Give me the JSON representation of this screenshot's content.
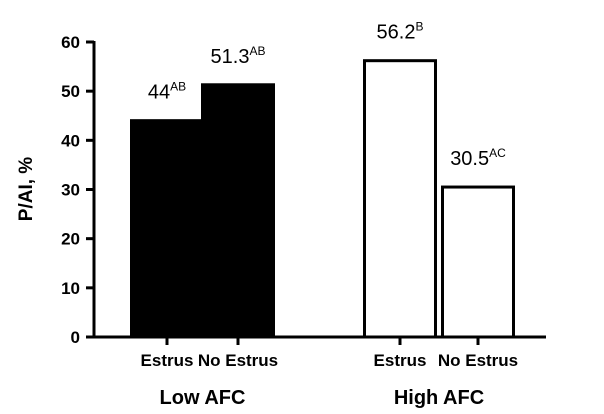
{
  "chart_data": {
    "type": "bar",
    "ylabel": "P/AI, %",
    "ylim": [
      0,
      60
    ],
    "yticks": [
      "0",
      "10",
      "20",
      "30",
      "40",
      "50",
      "60"
    ],
    "categories": [
      "Estrus",
      "No Estrus",
      "Estrus",
      "No Estrus"
    ],
    "groups": [
      {
        "label": "Low AFC",
        "categories": [
          0,
          1
        ]
      },
      {
        "label": "High AFC",
        "categories": [
          2,
          3
        ]
      }
    ],
    "values": [
      44,
      51.3,
      56.2,
      30.5
    ],
    "data_labels": [
      {
        "value": "44",
        "sup": "AB"
      },
      {
        "value": "51.3",
        "sup": "AB"
      },
      {
        "value": "56.2",
        "sup": "B"
      },
      {
        "value": "30.5",
        "sup": "AC"
      }
    ],
    "bar_styles": [
      {
        "fill": "#000000",
        "stroke": "#000000"
      },
      {
        "fill": "#000000",
        "stroke": "#000000"
      },
      {
        "fill": "#ffffff",
        "stroke": "#000000"
      },
      {
        "fill": "#ffffff",
        "stroke": "#000000"
      }
    ],
    "grid": false,
    "legend": "none"
  }
}
